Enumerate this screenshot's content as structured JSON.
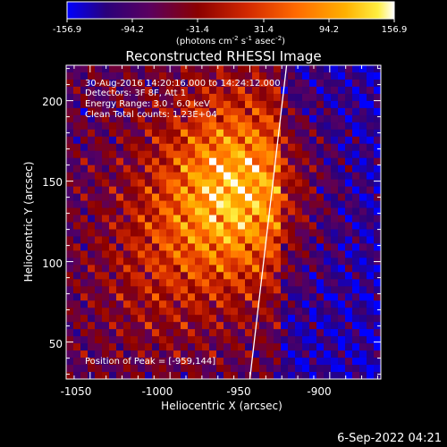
{
  "colorbar": {
    "ticks": [
      "-156.9",
      "-94.2",
      "-31.4",
      "31.4",
      "94.2",
      "156.9"
    ],
    "units_prefix": "(photons cm",
    "units_exp1": "-2",
    "units_mid": " s",
    "units_exp2": "-1",
    "units_mid2": " asec",
    "units_exp3": "-2",
    "units_suffix": ")",
    "range": [
      -156.9,
      156.9
    ],
    "colors": [
      "#0000ff",
      "#2a007a",
      "#5a0060",
      "#8b0000",
      "#d22800",
      "#ff6a00",
      "#ffb000",
      "#ffee40",
      "#ffffff"
    ]
  },
  "chart_data": {
    "type": "heatmap",
    "title": "Reconstructed RHESSI Image",
    "xlabel": "Heliocentric X (arcsec)",
    "ylabel": "Heliocentric Y (arcsec)",
    "x_ticks": [
      "-1050",
      "-1000",
      "-950",
      "-900"
    ],
    "y_ticks": [
      "50",
      "100",
      "150",
      "200"
    ],
    "xlim": [
      -1065,
      -868
    ],
    "ylim": [
      27,
      222
    ],
    "annotations": [
      "30-Aug-2016 14:20:16.000 to 14:24:12.000",
      "Detectors: 3F 8F, Att 1",
      "Energy Range: 3.0 - 6.0 keV",
      "Clean     Total counts: 1.23E+04"
    ],
    "peak_label": "Position of Peak = [-959,144]",
    "peak": [
      -959,
      144
    ],
    "limb_line": [
      [
        -950,
        27
      ],
      [
        -927,
        222
      ]
    ]
  },
  "footer": {
    "timestamp": "6-Sep-2022 04:21"
  }
}
